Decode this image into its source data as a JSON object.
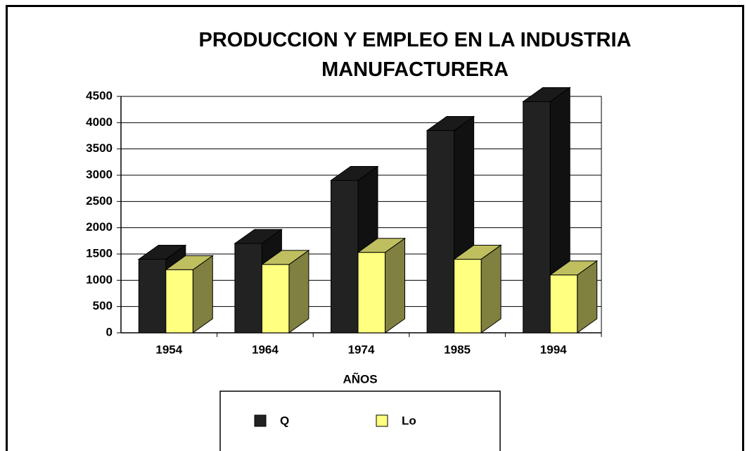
{
  "chart_data": {
    "type": "bar3d",
    "title": "PRODUCCION Y EMPLEO EN LA INDUSTRIA MANUFACTURERA",
    "x_label": "AÑOS",
    "categories": [
      "1954",
      "1964",
      "1974",
      "1985",
      "1994"
    ],
    "series": [
      {
        "name": "Q",
        "color": "#222222",
        "values": [
          1400,
          1700,
          2900,
          3850,
          4400
        ]
      },
      {
        "name": "Lo",
        "color": "#ffff80",
        "values": [
          1200,
          1300,
          1530,
          1400,
          1100
        ]
      }
    ],
    "ylim": [
      0,
      4500
    ],
    "yticks": [
      0,
      500,
      1000,
      1500,
      2000,
      2500,
      3000,
      3500,
      4000,
      4500
    ],
    "grid": true
  }
}
